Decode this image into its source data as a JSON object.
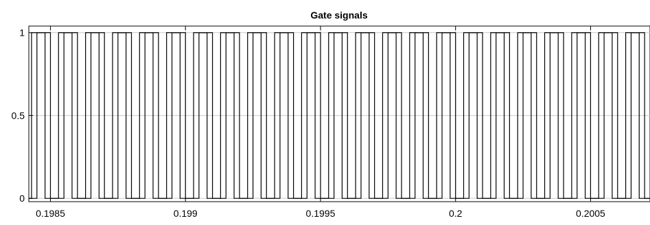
{
  "chart_data": {
    "type": "line",
    "title": "Gate signals",
    "xlabel": "",
    "ylabel": "",
    "xlim": [
      0.19842,
      0.20072
    ],
    "ylim": [
      -0.02,
      1.04
    ],
    "grid": true,
    "x_ticks": [
      0.1985,
      0.199,
      0.1995,
      0.2,
      0.2005
    ],
    "x_tick_labels": [
      "0.1985",
      "0.199",
      "0.1995",
      "0.2",
      "0.2005"
    ],
    "y_ticks": [
      0,
      0.5,
      1
    ],
    "y_tick_labels": [
      "0",
      "0.5",
      "1"
    ],
    "series": [
      {
        "x": [
          0.19842,
          0.19843,
          0.19843,
          0.19848,
          0.19848,
          0.19853,
          0.19853,
          0.19858,
          0.19858,
          0.19863,
          0.19863,
          0.19868,
          0.19868,
          0.19873,
          0.19873,
          0.19878,
          0.19878,
          0.19883,
          0.19883,
          0.19888,
          0.19888,
          0.19893,
          0.19893,
          0.19898,
          0.19898,
          0.19903,
          0.19903,
          0.19908,
          0.19908,
          0.19913,
          0.19913,
          0.19918,
          0.19918,
          0.19923,
          0.19923,
          0.19928,
          0.19928,
          0.19933,
          0.19933,
          0.19938,
          0.19938,
          0.19943,
          0.19943,
          0.19948,
          0.19948,
          0.19953,
          0.19953,
          0.19958,
          0.19958,
          0.19963,
          0.19963,
          0.19968,
          0.19968,
          0.19973,
          0.19973,
          0.19978,
          0.19978,
          0.19983,
          0.19983,
          0.19988,
          0.19988,
          0.19993,
          0.19993,
          0.19998,
          0.19998,
          0.20003,
          0.20003,
          0.20008,
          0.20008,
          0.20013,
          0.20013,
          0.20018,
          0.20018,
          0.20023,
          0.20023,
          0.20028,
          0.20028,
          0.20033,
          0.20033,
          0.20038,
          0.20038,
          0.20043,
          0.20043,
          0.20048,
          0.20048,
          0.20053,
          0.20053,
          0.20058,
          0.20058,
          0.20063,
          0.20063,
          0.20068,
          0.20068,
          0.20072
        ],
        "y": [
          0,
          0,
          1,
          1,
          0,
          0,
          1,
          1,
          0,
          0,
          1,
          1,
          0,
          0,
          1,
          1,
          0,
          0,
          1,
          1,
          0,
          0,
          1,
          1,
          0,
          0,
          1,
          1,
          0,
          0,
          1,
          1,
          0,
          0,
          1,
          1,
          0,
          0,
          1,
          1,
          0,
          0,
          1,
          1,
          0,
          0,
          1,
          1,
          0,
          0,
          1,
          1,
          0,
          0,
          1,
          1,
          0,
          0,
          1,
          1,
          0,
          0,
          1,
          1,
          0,
          0,
          1,
          1,
          0,
          0,
          1,
          1,
          0,
          0,
          1,
          1,
          0,
          0,
          1,
          1,
          0,
          0,
          1,
          1,
          0,
          0,
          1,
          1,
          0,
          0,
          1,
          1,
          0,
          0
        ]
      },
      {
        "x": [
          0.19842,
          0.19845,
          0.19845,
          0.1985,
          0.1985,
          0.19855,
          0.19855,
          0.1986,
          0.1986,
          0.19865,
          0.19865,
          0.1987,
          0.1987,
          0.19875,
          0.19875,
          0.1988,
          0.1988,
          0.19885,
          0.19885,
          0.1989,
          0.1989,
          0.19895,
          0.19895,
          0.199,
          0.199,
          0.19905,
          0.19905,
          0.1991,
          0.1991,
          0.19915,
          0.19915,
          0.1992,
          0.1992,
          0.19925,
          0.19925,
          0.1993,
          0.1993,
          0.19935,
          0.19935,
          0.1994,
          0.1994,
          0.19945,
          0.19945,
          0.1995,
          0.1995,
          0.19955,
          0.19955,
          0.1996,
          0.1996,
          0.19965,
          0.19965,
          0.1997,
          0.1997,
          0.19975,
          0.19975,
          0.1998,
          0.1998,
          0.19985,
          0.19985,
          0.1999,
          0.1999,
          0.19995,
          0.19995,
          0.2,
          0.2,
          0.20005,
          0.20005,
          0.2001,
          0.2001,
          0.20015,
          0.20015,
          0.2002,
          0.2002,
          0.20025,
          0.20025,
          0.2003,
          0.2003,
          0.20035,
          0.20035,
          0.2004,
          0.2004,
          0.20045,
          0.20045,
          0.2005,
          0.2005,
          0.20055,
          0.20055,
          0.2006,
          0.2006,
          0.20065,
          0.20065,
          0.2007,
          0.2007,
          0.20072
        ],
        "y": [
          0,
          0,
          1,
          1,
          0,
          0,
          1,
          1,
          0,
          0,
          1,
          1,
          0,
          0,
          1,
          1,
          0,
          0,
          1,
          1,
          0,
          0,
          1,
          1,
          0,
          0,
          1,
          1,
          0,
          0,
          1,
          1,
          0,
          0,
          1,
          1,
          0,
          0,
          1,
          1,
          0,
          0,
          1,
          1,
          0,
          0,
          1,
          1,
          0,
          0,
          1,
          1,
          0,
          0,
          1,
          1,
          0,
          0,
          1,
          1,
          0,
          0,
          1,
          1,
          0,
          0,
          1,
          1,
          0,
          0,
          1,
          1,
          0,
          0,
          1,
          1,
          0,
          0,
          1,
          1,
          0,
          0,
          1,
          1,
          0,
          0,
          1,
          1,
          0,
          0,
          1,
          1,
          0,
          0
        ]
      }
    ]
  }
}
